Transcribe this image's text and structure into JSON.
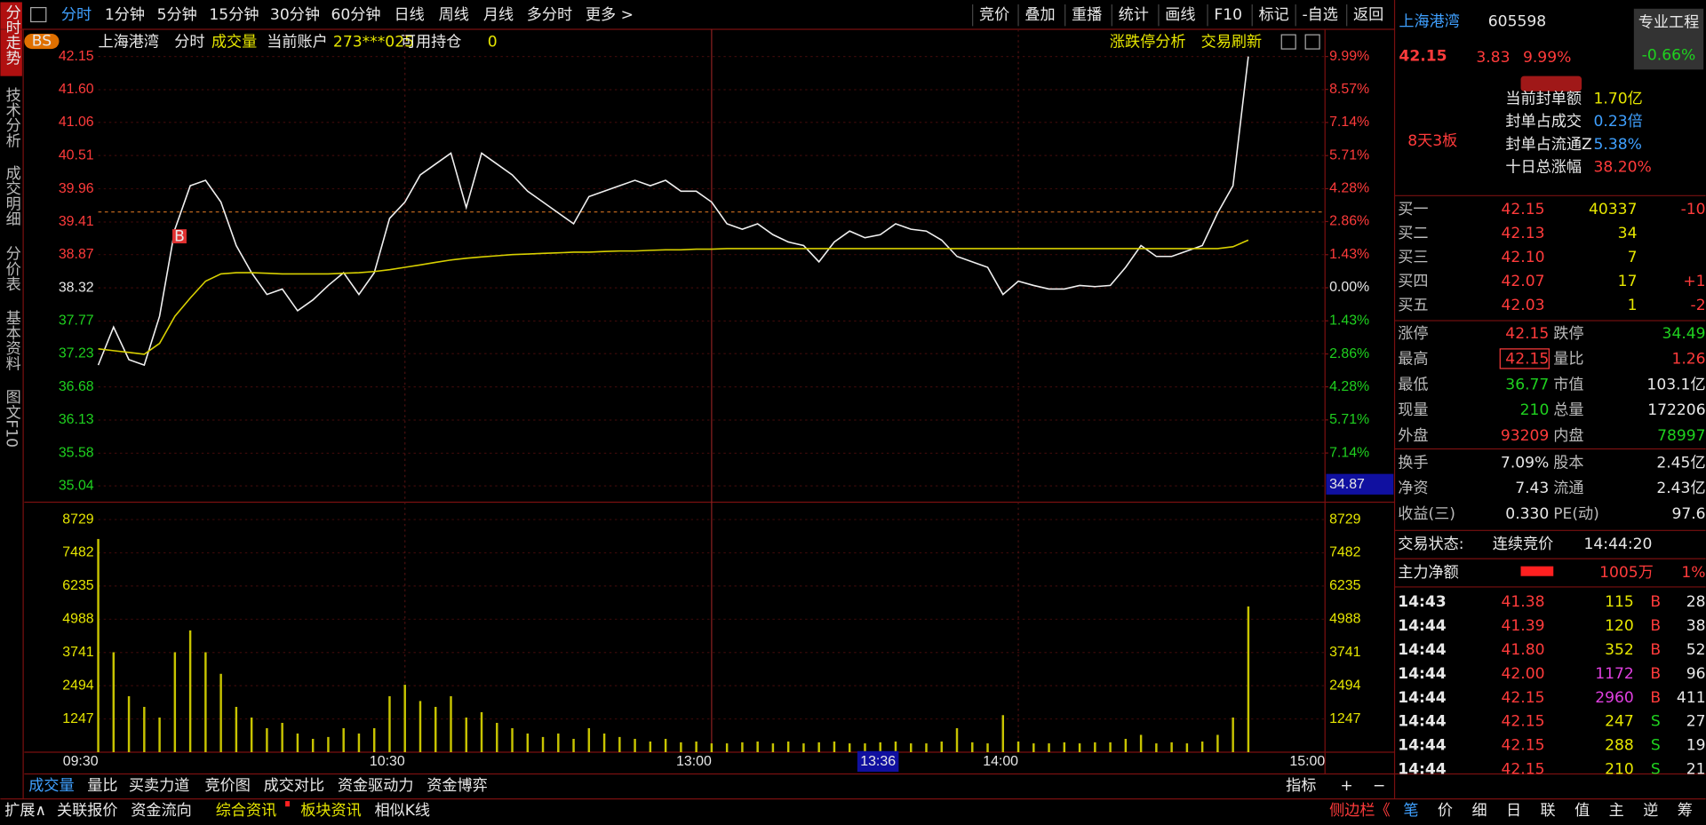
{
  "toolbar": {
    "tabs": [
      "分时",
      "1分钟",
      "5分钟",
      "15分钟",
      "30分钟",
      "60分钟",
      "日线",
      "周线",
      "月线",
      "多分时",
      "更多 >"
    ],
    "actions": [
      "竞价",
      "叠加",
      "重播",
      "统计",
      "画线",
      "F10",
      "标记",
      "-自选",
      "返回"
    ]
  },
  "sidebar": [
    "分时走势",
    "技术分析",
    "成交明细",
    "分价表",
    "基本资料",
    "图文F10"
  ],
  "chart_header": {
    "badge": "BS",
    "stock": "上海港湾",
    "mode": "分时",
    "indicator": "成交量",
    "account_label": "当前账户",
    "account": "273***025",
    "position_label": "可用持仓",
    "position": "0",
    "links": [
      "涨跌停分析",
      "交易刷新"
    ]
  },
  "chart_data": [
    {
      "type": "line",
      "x": [
        0,
        3,
        6,
        9,
        12,
        15,
        18,
        21,
        24,
        27,
        30,
        33,
        36,
        39,
        42,
        45,
        48,
        51,
        54,
        57,
        60,
        63,
        66,
        69,
        72,
        75,
        78,
        81,
        84,
        87,
        90,
        93,
        96,
        99,
        102,
        105,
        108,
        111,
        114,
        117,
        120,
        123,
        126,
        129,
        132,
        135,
        138,
        141,
        144,
        147,
        150,
        153,
        156,
        159,
        162,
        165,
        168,
        171,
        174,
        177,
        180,
        183,
        186,
        189,
        192,
        195,
        198,
        201,
        204,
        207,
        210,
        213,
        216,
        219,
        222,
        225
      ],
      "xlim": [
        0,
        240
      ],
      "ylim": [
        35.04,
        42.15
      ],
      "yticks": [
        42.15,
        {
          "value": 41.6,
          "label": "41.60"
        },
        41.06,
        40.51,
        39.96,
        39.41,
        38.87,
        38.32,
        37.77,
        37.23,
        36.68,
        36.13,
        35.58,
        35.04
      ],
      "y2lim": [
        -8.56,
        9.99
      ],
      "y2ticks": [
        {
          "value": 9.99,
          "label": "9.99%"
        },
        {
          "value": 8.57,
          "label": "8.57%"
        },
        {
          "value": 7.14,
          "label": "7.14%"
        },
        {
          "value": 5.71,
          "label": "5.71%"
        },
        {
          "value": 4.28,
          "label": "4.28%"
        },
        {
          "value": 2.86,
          "label": "2.86%"
        },
        {
          "value": 1.43,
          "label": "1.43%"
        },
        {
          "value": 0,
          "label": "0.00%"
        },
        {
          "value": -1.43,
          "label": "1.43%"
        },
        {
          "value": -2.86,
          "label": "2.86%"
        },
        {
          "value": -4.28,
          "label": "4.28%"
        },
        {
          "value": -5.71,
          "label": "5.71%"
        },
        {
          "value": -7.14,
          "label": "7.14%"
        }
      ],
      "grid": true,
      "series": [
        {
          "color": "#f0f0f0",
          "values": [
            37.04,
            37.67,
            37.13,
            37.04,
            37.85,
            39.29,
            40.01,
            40.1,
            39.74,
            39.02,
            38.57,
            38.21,
            38.3,
            37.94,
            38.12,
            38.36,
            38.57,
            38.21,
            38.57,
            39.47,
            39.74,
            40.19,
            40.37,
            40.55,
            39.65,
            40.55,
            40.37,
            40.19,
            39.92,
            39.74,
            39.56,
            39.38,
            39.83,
            39.92,
            40.01,
            40.1,
            40.01,
            40.1,
            39.92,
            39.92,
            39.74,
            39.38,
            39.29,
            39.38,
            39.2,
            39.08,
            39.02,
            38.75,
            39.08,
            39.26,
            39.15,
            39.2,
            39.38,
            39.29,
            39.26,
            39.11,
            38.84,
            38.75,
            38.66,
            38.21,
            38.43,
            38.36,
            38.3,
            38.3,
            38.36,
            38.34,
            38.36,
            38.66,
            39.02,
            38.84,
            38.84,
            38.93,
            39.02,
            39.56,
            40.01,
            42.15
          ]
        },
        {
          "color": "#d8d000",
          "values": [
            37.31,
            37.28,
            37.25,
            37.22,
            37.4,
            37.85,
            38.15,
            38.43,
            38.55,
            38.57,
            38.57,
            38.56,
            38.55,
            38.55,
            38.55,
            38.55,
            38.56,
            38.57,
            38.59,
            38.62,
            38.66,
            38.7,
            38.74,
            38.78,
            38.81,
            38.83,
            38.85,
            38.87,
            38.88,
            38.89,
            38.9,
            38.91,
            38.91,
            38.92,
            38.93,
            38.93,
            38.94,
            38.95,
            38.95,
            38.96,
            38.96,
            38.97,
            38.97,
            38.97,
            38.97,
            38.97,
            38.97,
            38.97,
            38.97,
            38.97,
            38.97,
            38.97,
            38.97,
            38.97,
            38.97,
            38.97,
            38.97,
            38.97,
            38.97,
            38.97,
            38.97,
            38.97,
            38.97,
            38.97,
            38.97,
            38.97,
            38.97,
            38.97,
            38.97,
            38.97,
            38.97,
            38.97,
            38.97,
            38.97,
            39.0,
            39.11
          ]
        }
      ],
      "annotations": [
        {
          "text": "B",
          "x": 16,
          "y": 39.29
        }
      ],
      "cursor": {
        "x_label": "13:36",
        "y_label": "34.87"
      }
    },
    {
      "type": "bar",
      "color": "#c8c400",
      "x": [
        0,
        3,
        6,
        9,
        12,
        15,
        18,
        21,
        24,
        27,
        30,
        33,
        36,
        39,
        42,
        45,
        48,
        51,
        54,
        57,
        60,
        63,
        66,
        69,
        72,
        75,
        78,
        81,
        84,
        87,
        90,
        93,
        96,
        99,
        102,
        105,
        108,
        111,
        114,
        117,
        120,
        123,
        126,
        129,
        132,
        135,
        138,
        141,
        144,
        147,
        150,
        153,
        156,
        159,
        162,
        165,
        168,
        171,
        174,
        177,
        180,
        183,
        186,
        189,
        192,
        195,
        198,
        201,
        204,
        207,
        210,
        213,
        216,
        219,
        222,
        225
      ],
      "values": [
        8000,
        3750,
        2100,
        1700,
        1300,
        3750,
        4570,
        3750,
        2940,
        1700,
        1300,
        900,
        1100,
        700,
        500,
        570,
        900,
        700,
        900,
        2100,
        2530,
        1920,
        1700,
        2100,
        1300,
        1500,
        1100,
        900,
        700,
        570,
        700,
        500,
        900,
        700,
        570,
        500,
        400,
        500,
        370,
        400,
        330,
        330,
        370,
        400,
        330,
        400,
        330,
        370,
        400,
        330,
        330,
        370,
        400,
        330,
        330,
        400,
        900,
        370,
        330,
        1390,
        400,
        330,
        330,
        370,
        330,
        370,
        370,
        500,
        650,
        330,
        370,
        330,
        400,
        650,
        1300,
        5470
      ],
      "xlim": [
        0,
        240
      ],
      "ylim": [
        0,
        8729
      ],
      "yticks": [
        8729,
        7482,
        6235,
        4988,
        3741,
        2494,
        1247
      ],
      "xticks": [
        {
          "value": 0,
          "label": "09:30"
        },
        {
          "value": 60,
          "label": "10:30"
        },
        {
          "value": 120,
          "label": "13:00"
        },
        {
          "value": 180,
          "label": "14:00"
        },
        {
          "value": 240,
          "label": "15:00"
        }
      ],
      "grid": true
    }
  ],
  "quote": {
    "name": "上海港湾",
    "code": "605598",
    "price": "42.15",
    "change": "3.83",
    "pct": "9.99%",
    "tag": "专业工程",
    "tag_value": "-0.66%",
    "board": "8天3板"
  },
  "seal": [
    {
      "label": "当前封单额",
      "value": "1.70亿"
    },
    {
      "label": "封单占成交",
      "value": "0.23倍"
    },
    {
      "label": "封单占流通Z",
      "value": "5.38%"
    },
    {
      "label": "十日总涨幅",
      "value": "38.20%"
    }
  ],
  "order_book": [
    {
      "label": "买一",
      "price": "42.15",
      "volume": "40337",
      "change": "-10"
    },
    {
      "label": "买二",
      "price": "42.13",
      "volume": "34",
      "change": ""
    },
    {
      "label": "买三",
      "price": "42.10",
      "volume": "7",
      "change": ""
    },
    {
      "label": "买四",
      "price": "42.07",
      "volume": "17",
      "change": "+1"
    },
    {
      "label": "买五",
      "price": "42.03",
      "volume": "1",
      "change": "-2"
    }
  ],
  "stats": [
    [
      {
        "label": "涨停",
        "value": "42.15"
      },
      {
        "label": "跌停",
        "value": "34.49"
      }
    ],
    [
      {
        "label": "最高",
        "value": "42.15"
      },
      {
        "label": "量比",
        "value": "1.26"
      }
    ],
    [
      {
        "label": "最低",
        "value": "36.77"
      },
      {
        "label": "市值",
        "value": "103.1亿"
      }
    ],
    [
      {
        "label": "现量",
        "value": "210"
      },
      {
        "label": "总量",
        "value": "172206"
      }
    ],
    [
      {
        "label": "外盘",
        "value": "93209"
      },
      {
        "label": "内盘",
        "value": "78997"
      }
    ]
  ],
  "stats2": [
    [
      {
        "label": "换手",
        "value": "7.09%"
      },
      {
        "label": "股本",
        "value": "2.45亿"
      }
    ],
    [
      {
        "label": "净资",
        "value": "7.43"
      },
      {
        "label": "流通",
        "value": "2.43亿"
      }
    ],
    [
      {
        "label": "收益(三)",
        "value": "0.330"
      },
      {
        "label": "PE(动)",
        "value": "97.6"
      }
    ]
  ],
  "status": {
    "label": "交易状态:",
    "value": "连续竞价",
    "time": "14:44:20"
  },
  "main_flow": {
    "label": "主力净额",
    "value": "1005万",
    "pct": "1%"
  },
  "trades": [
    [
      "14:43",
      "41.38",
      "115",
      "B",
      "28"
    ],
    [
      "14:44",
      "41.39",
      "120",
      "B",
      "38"
    ],
    [
      "14:44",
      "41.80",
      "352",
      "B",
      "52"
    ],
    [
      "14:44",
      "42.00",
      "1172",
      "B",
      "96"
    ],
    [
      "14:44",
      "42.15",
      "2960",
      "B",
      "411"
    ],
    [
      "14:44",
      "42.15",
      "247",
      "S",
      "27"
    ],
    [
      "14:44",
      "42.15",
      "288",
      "S",
      "19"
    ],
    [
      "14:44",
      "42.15",
      "210",
      "S",
      "21"
    ]
  ],
  "panel_tabs": [
    "笔",
    "价",
    "细",
    "日",
    "联",
    "值",
    "主",
    "逆",
    "筹"
  ],
  "bottom_tabs": [
    "成交量",
    "量比",
    "买卖力道",
    "竞价图",
    "成交对比",
    "资金驱动力",
    "资金博弈"
  ],
  "bottom_right": [
    "指标",
    "+",
    "−"
  ],
  "bottom_links": [
    "扩展∧",
    "关联报价",
    "资金流向",
    "综合资讯",
    "板块资讯",
    "相似K线"
  ],
  "sidebar_toggle": "侧边栏《"
}
